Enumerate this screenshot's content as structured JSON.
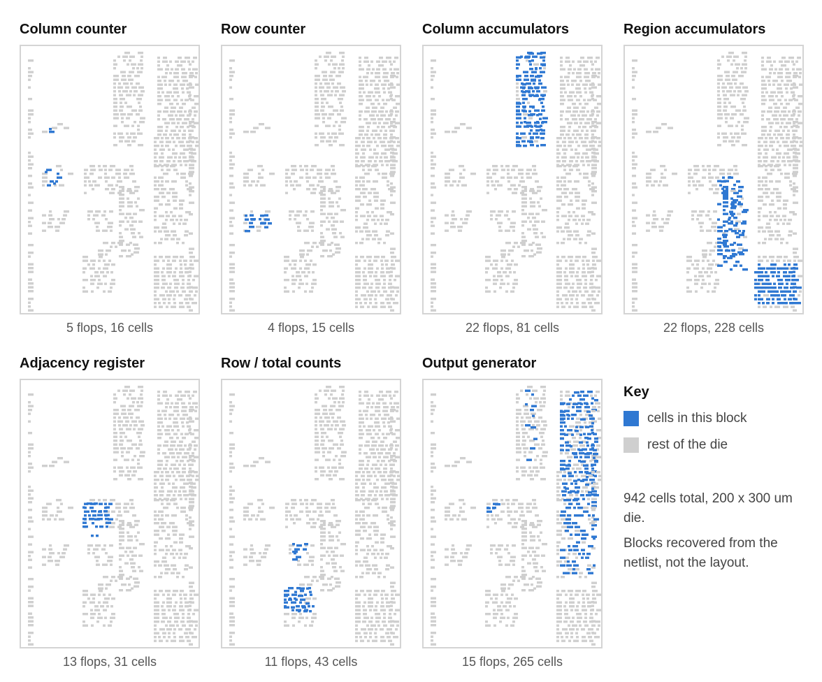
{
  "colors": {
    "block": "#2f78d2",
    "rest": "#cfcfcf",
    "frame": "#d4d4d4"
  },
  "die": {
    "width_um": 200,
    "height_um": 300
  },
  "panels": [
    {
      "title": "Column counter",
      "caption": "5 flops, 16 cells",
      "region": "colcounter"
    },
    {
      "title": "Row counter",
      "caption": "4 flops, 15 cells",
      "region": "rowcounter"
    },
    {
      "title": "Column accumulators",
      "caption": "22 flops, 81 cells",
      "region": "colaccum"
    },
    {
      "title": "Region accumulators",
      "caption": "22 flops, 228 cells",
      "region": "regionaccum"
    },
    {
      "title": "Adjacency register",
      "caption": "13 flops, 31 cells",
      "region": "adjacency"
    },
    {
      "title": "Row / total counts",
      "caption": "11 flops, 43 cells",
      "region": "rowtotal"
    },
    {
      "title": "Output generator",
      "caption": "15 flops, 265 cells",
      "region": "output"
    }
  ],
  "key": {
    "title": "Key",
    "items": [
      {
        "label": "cells in this block",
        "color": "#2f78d2"
      },
      {
        "label": "rest of the die",
        "color": "#cfcfcf"
      }
    ]
  },
  "notes": [
    "942 cells total, 200 x 300 um die.",
    "Blocks recovered from the netlist, not the layout."
  ]
}
